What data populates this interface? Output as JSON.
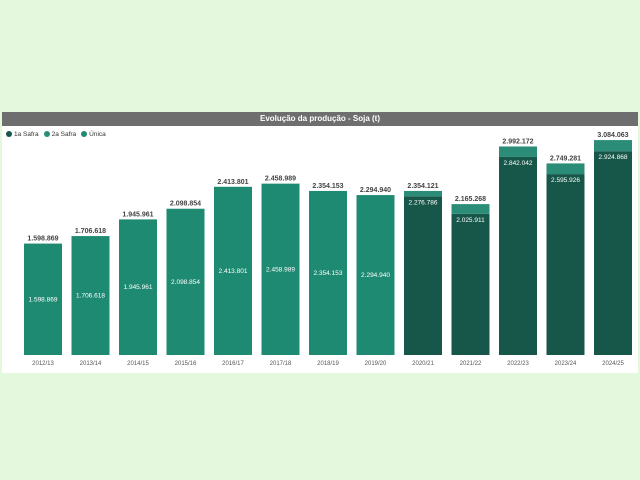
{
  "chart_data": {
    "type": "bar",
    "title": "Evolução da produção - Soja (t)",
    "legend_position": "top-left",
    "grid": false,
    "xlabel": "",
    "ylabel": "",
    "ylim": [
      0,
      3200000
    ],
    "categories": [
      "2012/13",
      "2013/14",
      "2014/15",
      "2015/16",
      "2016/17",
      "2017/18",
      "2018/19",
      "2019/20",
      "2020/21",
      "2021/22",
      "2022/23",
      "2023/24",
      "2024/25"
    ],
    "series": [
      {
        "name": "1a Safra",
        "color": "#17574a",
        "values": [
          null,
          null,
          null,
          null,
          null,
          null,
          null,
          null,
          2276786,
          2025911,
          2842042,
          2595926,
          2924868
        ],
        "labels": [
          "",
          "",
          "",
          "",
          "",
          "",
          "",
          "",
          "2.276.786",
          "2.025.911",
          "2.842.042",
          "2.595.926",
          "2.924.868"
        ]
      },
      {
        "name": "2a Safra",
        "color": "#2b8c77",
        "values": [
          null,
          null,
          null,
          null,
          null,
          null,
          null,
          null,
          77335,
          139357,
          150130,
          153355,
          159195
        ],
        "labels": [
          "",
          "",
          "",
          "",
          "",
          "",
          "",
          "",
          "",
          "",
          "",
          "",
          ""
        ]
      },
      {
        "name": "Única",
        "color": "#1f8a72",
        "values": [
          1598869,
          1706618,
          1945961,
          2098854,
          2413801,
          2458989,
          2354153,
          2294940,
          null,
          null,
          null,
          null,
          null
        ],
        "labels": [
          "1.598.869",
          "1.706.618",
          "1.945.961",
          "2.098.854",
          "2.413.801",
          "2.458.989",
          "2.354.153",
          "2.294.940",
          "",
          "",
          "",
          "",
          ""
        ]
      }
    ],
    "total_labels": [
      "1.598.869",
      "1.706.618",
      "1.945.961",
      "2.098.854",
      "2.413.801",
      "2.458.989",
      "2.354.153",
      "2.294.940",
      "2.354.121",
      "2.165.268",
      "2.992.172",
      "2.749.281",
      "3.084.063"
    ]
  }
}
